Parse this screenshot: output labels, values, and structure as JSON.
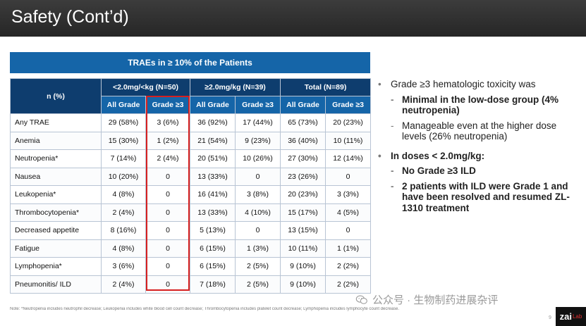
{
  "header": {
    "title": "Safety (Cont’d)"
  },
  "table": {
    "banner": "TRAEs in ≥ 10% of the Patients",
    "corner": "n (%)",
    "groups": [
      "<2.0mg/<kg (N=50)",
      "≥2.0mg/kg (N=39)",
      "Total (N=89)"
    ],
    "subcols": [
      "All Grade",
      "Grade ≥3",
      "All Grade",
      "Grade ≥3",
      "All Grade",
      "Grade ≥3"
    ],
    "rows": [
      {
        "label": "Any TRAE",
        "cells": [
          "29 (58%)",
          "3 (6%)",
          "36 (92%)",
          "17 (44%)",
          "65 (73%)",
          "20 (23%)"
        ]
      },
      {
        "label": "Anemia",
        "cells": [
          "15 (30%)",
          "1 (2%)",
          "21 (54%)",
          "9 (23%)",
          "36 (40%)",
          "10 (11%)"
        ]
      },
      {
        "label": "Neutropenia*",
        "cells": [
          "7 (14%)",
          "2 (4%)",
          "20 (51%)",
          "10 (26%)",
          "27 (30%)",
          "12 (14%)"
        ]
      },
      {
        "label": "Nausea",
        "cells": [
          "10 (20%)",
          "0",
          "13 (33%)",
          "0",
          "23 (26%)",
          "0"
        ]
      },
      {
        "label": "Leukopenia*",
        "cells": [
          "4 (8%)",
          "0",
          "16 (41%)",
          "3 (8%)",
          "20 (23%)",
          "3 (3%)"
        ]
      },
      {
        "label": "Thrombocytopenia*",
        "cells": [
          "2 (4%)",
          "0",
          "13 (33%)",
          "4 (10%)",
          "15 (17%)",
          "4 (5%)"
        ]
      },
      {
        "label": "Decreased appetite",
        "cells": [
          "8 (16%)",
          "0",
          "5 (13%)",
          "0",
          "13 (15%)",
          "0"
        ]
      },
      {
        "label": "Fatigue",
        "cells": [
          "4 (8%)",
          "0",
          "6 (15%)",
          "1 (3%)",
          "10 (11%)",
          "1 (1%)"
        ]
      },
      {
        "label": "Lymphopenia*",
        "cells": [
          "3 (6%)",
          "0",
          "6 (15%)",
          "2 (5%)",
          "9 (10%)",
          "2 (2%)"
        ]
      },
      {
        "label": "Pneumonitis/ ILD",
        "cells": [
          "2 (4%)",
          "0",
          "7 (18%)",
          "2 (5%)",
          "9 (10%)",
          "2 (2%)"
        ]
      }
    ]
  },
  "bullets": {
    "b1": "Grade ≥3 hematologic toxicity was",
    "b1_s1": "Minimal in the low-dose group (4% neutropenia)",
    "b1_s2": "Manageable even at the higher dose levels (26% neutropenia)",
    "b2": "In doses < 2.0mg/kg:",
    "b2_s1": "No Grade ≥3 ILD",
    "b2_s2": "2 patients with ILD were Grade 1 and have been resolved and resumed ZL-1310 treatment"
  },
  "footnote": "Note: *Neutropenia includes neutrophil decrease; Leukopenia includes white blood cell count decrease; Thrombocytopenia includes platelet count decrease; Lymphopenia includes lymphocyte count decrease.",
  "watermark": "公众号 · 生物制药进展杂评",
  "page_number": "9",
  "logo": {
    "main": "zai",
    "sub": "Lab"
  },
  "colors": {
    "header_bg": "#2c2c2c",
    "banner": "#1565a8",
    "table_header": "#0e3d6e",
    "highlight_box": "#d62020"
  },
  "icons": [
    "wechat-icon"
  ]
}
